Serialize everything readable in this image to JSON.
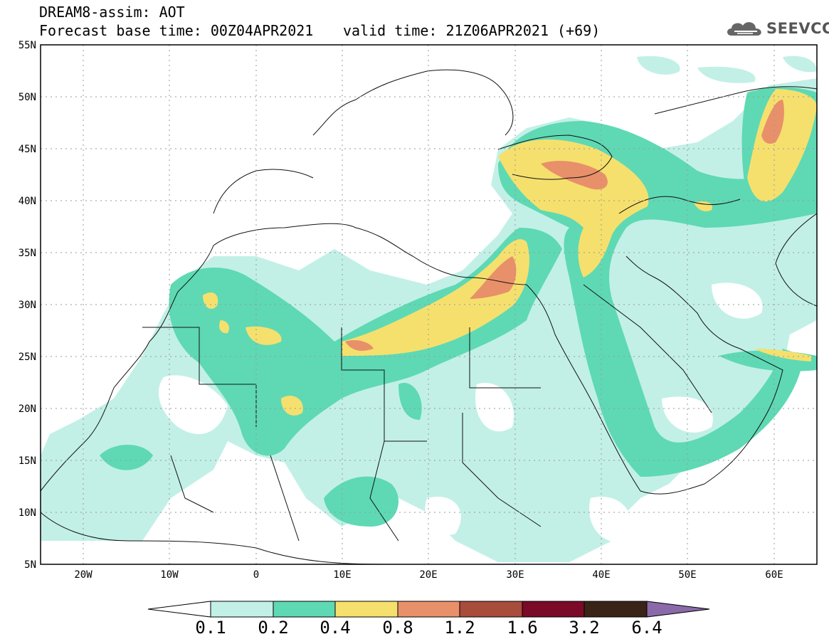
{
  "title": {
    "line1": "DREAM8-assim: AOT",
    "line2": "Forecast base time: 00Z04APR2021",
    "valid": "valid time: 21Z06APR2021 (+69)"
  },
  "logo": {
    "text": "SEEVCCC",
    "icon": "cloud-icon"
  },
  "axes": {
    "lat_labels": [
      "55N",
      "50N",
      "45N",
      "40N",
      "35N",
      "30N",
      "25N",
      "20N",
      "15N",
      "10N",
      "5N"
    ],
    "lat_values": [
      55,
      50,
      45,
      40,
      35,
      30,
      25,
      20,
      15,
      10,
      5
    ],
    "lon_labels": [
      "20W",
      "10W",
      "0",
      "10E",
      "20E",
      "30E",
      "40E",
      "50E",
      "60E"
    ],
    "lon_values": [
      -20,
      -10,
      0,
      10,
      20,
      30,
      40,
      50,
      60
    ],
    "lon_range": [
      -25,
      65
    ],
    "lat_range": [
      5,
      55
    ],
    "grid": "dotted"
  },
  "colorbar": {
    "labels": [
      "0.1",
      "0.2",
      "0.4",
      "0.8",
      "1.2",
      "1.6",
      "3.2",
      "6.4"
    ],
    "colors": [
      "#ffffff",
      "#c2f0e6",
      "#5ed9b4",
      "#f5e06e",
      "#e8906a",
      "#a84c3c",
      "#7a0a28",
      "#3a2418",
      "#8a6aa8"
    ]
  },
  "chart_data": {
    "type": "heatmap",
    "variable": "AOT",
    "levels": [
      0.1,
      0.2,
      0.4,
      0.8,
      1.2,
      1.6,
      3.2,
      6.4
    ],
    "xlim": [
      -25,
      65
    ],
    "ylim": [
      5,
      55
    ]
  }
}
